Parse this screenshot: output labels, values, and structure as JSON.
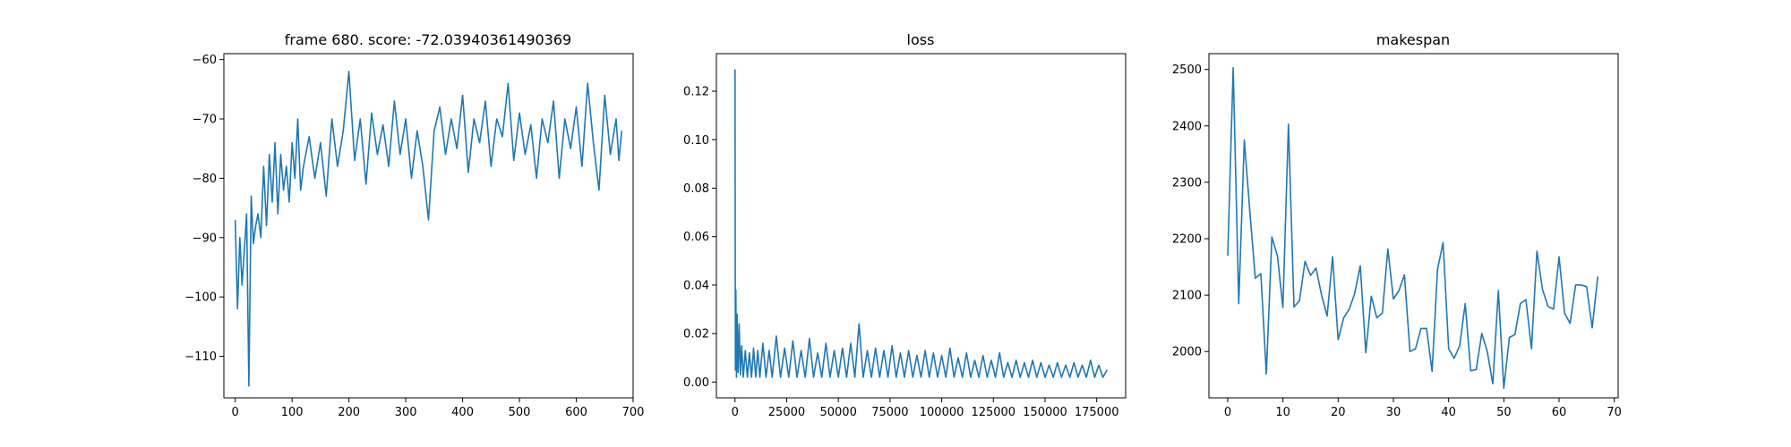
{
  "figure": {
    "background": "#ffffff",
    "line_color": "#1f77b4"
  },
  "chart_data": [
    {
      "type": "line",
      "title": "frame 680. score: -72.03940361490369",
      "xlabel": "",
      "ylabel": "",
      "xlim": [
        -20,
        700
      ],
      "ylim": [
        -117,
        -59
      ],
      "xticks": [
        0,
        100,
        200,
        300,
        400,
        500,
        600,
        700
      ],
      "xtick_labels": [
        "0",
        "100",
        "200",
        "300",
        "400",
        "500",
        "600",
        "700"
      ],
      "yticks": [
        -110,
        -100,
        -90,
        -80,
        -70,
        -60
      ],
      "ytick_labels": [
        "−110",
        "−100",
        "−90",
        "−80",
        "−70",
        "−60"
      ],
      "grid": false,
      "series": [
        {
          "color": "#1f77b4",
          "x": [
            0,
            4,
            8,
            12,
            16,
            20,
            24,
            28,
            32,
            36,
            40,
            45,
            50,
            55,
            60,
            65,
            70,
            75,
            80,
            85,
            90,
            95,
            100,
            105,
            110,
            115,
            120,
            130,
            140,
            150,
            160,
            170,
            180,
            190,
            200,
            210,
            220,
            230,
            240,
            250,
            260,
            270,
            280,
            290,
            300,
            310,
            320,
            330,
            340,
            350,
            360,
            370,
            380,
            390,
            400,
            410,
            420,
            430,
            440,
            450,
            460,
            470,
            480,
            490,
            500,
            510,
            520,
            530,
            540,
            550,
            560,
            570,
            580,
            590,
            600,
            610,
            620,
            630,
            640,
            650,
            660,
            670,
            675,
            680
          ],
          "y": [
            -87,
            -102,
            -90,
            -98,
            -92,
            -86,
            -115,
            -83,
            -91,
            -88,
            -86,
            -90,
            -78,
            -88,
            -76,
            -84,
            -74,
            -86,
            -76,
            -82,
            -78,
            -84,
            -74,
            -80,
            -70,
            -82,
            -78,
            -73,
            -80,
            -74,
            -83,
            -70,
            -78,
            -72,
            -62,
            -77,
            -70,
            -81,
            -69,
            -76,
            -71,
            -78,
            -67,
            -76,
            -70,
            -80,
            -72,
            -78,
            -87,
            -72,
            -68,
            -76,
            -70,
            -75,
            -66,
            -79,
            -70,
            -74,
            -67,
            -78,
            -70,
            -73,
            -64,
            -77,
            -69,
            -76,
            -71,
            -80,
            -70,
            -74,
            -67,
            -80,
            -70,
            -75,
            -68,
            -78,
            -64,
            -74,
            -82,
            -66,
            -76,
            -70,
            -77,
            -72
          ]
        }
      ]
    },
    {
      "type": "line",
      "title": "loss",
      "xlabel": "",
      "ylabel": "",
      "xlim": [
        -9000,
        189000
      ],
      "ylim": [
        -0.0065,
        0.1355
      ],
      "xticks": [
        0,
        25000,
        50000,
        75000,
        100000,
        125000,
        150000,
        175000
      ],
      "xtick_labels": [
        "0",
        "25000",
        "50000",
        "75000",
        "100000",
        "125000",
        "150000",
        "175000"
      ],
      "yticks": [
        0.0,
        0.02,
        0.04,
        0.06,
        0.08,
        0.1,
        0.12
      ],
      "ytick_labels": [
        "0.00",
        "0.02",
        "0.04",
        "0.06",
        "0.08",
        "0.10",
        "0.12"
      ],
      "grid": false,
      "series": [
        {
          "color": "#1f77b4",
          "x": [
            0,
            200,
            400,
            700,
            1000,
            1500,
            2000,
            2600,
            3200,
            4000,
            5000,
            6000,
            7000,
            8000,
            9000,
            10000,
            11000,
            12000,
            13500,
            15000,
            16500,
            18000,
            20000,
            22000,
            24000,
            26000,
            28000,
            30000,
            32000,
            34000,
            36000,
            38000,
            40000,
            42000,
            44000,
            46000,
            48000,
            50000,
            52000,
            54000,
            56000,
            58000,
            60000,
            62000,
            64000,
            66000,
            68000,
            70000,
            72000,
            74000,
            76000,
            78000,
            80000,
            82000,
            84000,
            86000,
            88000,
            90000,
            92000,
            94000,
            96000,
            98000,
            100000,
            102000,
            104000,
            106000,
            108000,
            110000,
            112000,
            114000,
            116000,
            118000,
            120000,
            122000,
            124000,
            126000,
            128000,
            130000,
            132000,
            134000,
            136000,
            138000,
            140000,
            142000,
            144000,
            146000,
            148000,
            150000,
            152000,
            154000,
            156000,
            158000,
            160000,
            162000,
            164000,
            166000,
            168000,
            170000,
            172000,
            174000,
            176000,
            178000,
            180000
          ],
          "y": [
            0.129,
            0.005,
            0.038,
            0.002,
            0.028,
            0.004,
            0.024,
            0.003,
            0.015,
            0.002,
            0.013,
            0.002,
            0.012,
            0.002,
            0.014,
            0.002,
            0.013,
            0.002,
            0.016,
            0.002,
            0.013,
            0.002,
            0.019,
            0.002,
            0.014,
            0.002,
            0.017,
            0.002,
            0.013,
            0.002,
            0.018,
            0.002,
            0.012,
            0.002,
            0.016,
            0.002,
            0.013,
            0.002,
            0.014,
            0.002,
            0.016,
            0.002,
            0.024,
            0.002,
            0.013,
            0.002,
            0.014,
            0.002,
            0.013,
            0.002,
            0.015,
            0.002,
            0.012,
            0.002,
            0.013,
            0.002,
            0.011,
            0.002,
            0.013,
            0.002,
            0.012,
            0.002,
            0.011,
            0.002,
            0.014,
            0.002,
            0.01,
            0.002,
            0.012,
            0.002,
            0.009,
            0.002,
            0.011,
            0.002,
            0.009,
            0.002,
            0.012,
            0.002,
            0.008,
            0.002,
            0.009,
            0.002,
            0.008,
            0.002,
            0.009,
            0.002,
            0.008,
            0.002,
            0.007,
            0.002,
            0.008,
            0.002,
            0.007,
            0.002,
            0.008,
            0.002,
            0.007,
            0.002,
            0.009,
            0.002,
            0.007,
            0.002,
            0.005
          ]
        }
      ]
    },
    {
      "type": "line",
      "title": "makespan",
      "xlabel": "",
      "ylabel": "",
      "xlim": [
        -3.4,
        70.7
      ],
      "ylim": [
        1918,
        2528
      ],
      "xticks": [
        0,
        10,
        20,
        30,
        40,
        50,
        60,
        70
      ],
      "xtick_labels": [
        "0",
        "10",
        "20",
        "30",
        "40",
        "50",
        "60",
        "70"
      ],
      "yticks": [
        2000,
        2100,
        2200,
        2300,
        2400,
        2500
      ],
      "ytick_labels": [
        "2000",
        "2100",
        "2200",
        "2300",
        "2400",
        "2500"
      ],
      "grid": false,
      "series": [
        {
          "color": "#1f77b4",
          "x": [
            0,
            1,
            2,
            3,
            4,
            5,
            6,
            7,
            8,
            9,
            10,
            11,
            12,
            13,
            14,
            15,
            16,
            17,
            18,
            19,
            20,
            21,
            22,
            23,
            24,
            25,
            26,
            27,
            28,
            29,
            30,
            31,
            32,
            33,
            34,
            35,
            36,
            37,
            38,
            39,
            40,
            41,
            42,
            43,
            44,
            45,
            46,
            47,
            48,
            49,
            50,
            51,
            52,
            53,
            54,
            55,
            56,
            57,
            58,
            59,
            60,
            61,
            62,
            63,
            64,
            65,
            66,
            67
          ],
          "y": [
            2170,
            2503,
            2085,
            2375,
            2250,
            2130,
            2138,
            1960,
            2203,
            2170,
            2078,
            2403,
            2079,
            2090,
            2160,
            2135,
            2148,
            2100,
            2063,
            2168,
            2021,
            2060,
            2075,
            2103,
            2152,
            1998,
            2098,
            2060,
            2068,
            2182,
            2093,
            2108,
            2136,
            2000,
            2005,
            2041,
            2041,
            1965,
            2146,
            2193,
            2005,
            1988,
            2010,
            2085,
            1966,
            1968,
            2032,
            2000,
            1943,
            2108,
            1935,
            2025,
            2030,
            2085,
            2092,
            2005,
            2178,
            2110,
            2080,
            2075,
            2168,
            2068,
            2050,
            2118,
            2118,
            2115,
            2042,
            2133
          ]
        }
      ]
    }
  ]
}
